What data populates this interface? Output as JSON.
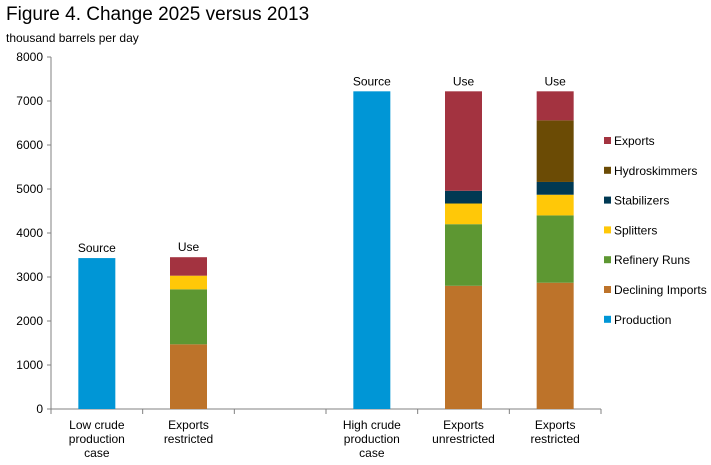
{
  "chart_data": {
    "type": "bar",
    "stacked": true,
    "title": "Figure 4. Change 2025 versus 2013",
    "subtitle": "thousand barrels per day",
    "ylim": [
      0,
      8000
    ],
    "yticks": [
      "0",
      "1000",
      "2000",
      "3000",
      "4000",
      "5000",
      "6000",
      "7000",
      "8000"
    ],
    "grid": false,
    "legend_position": "right",
    "categories": [
      {
        "label": [
          "Low crude",
          "production",
          "case"
        ],
        "top_label": "Source"
      },
      {
        "label": [
          "Exports",
          "restricted"
        ],
        "top_label": "Use"
      },
      {
        "label": [],
        "top_label": ""
      },
      {
        "label": [
          "High crude",
          "production",
          "case"
        ],
        "top_label": "Source"
      },
      {
        "label": [
          "Exports",
          "unrestricted"
        ],
        "top_label": "Use"
      },
      {
        "label": [
          "Exports",
          "restricted"
        ],
        "top_label": "Use"
      }
    ],
    "series": [
      {
        "name": "Production",
        "color": "#0096d6",
        "values": [
          3430,
          0,
          0,
          7220,
          0,
          0
        ]
      },
      {
        "name": "Declining Imports",
        "color": "#bd732a",
        "values": [
          0,
          1470,
          0,
          0,
          2800,
          2870
        ]
      },
      {
        "name": "Refinery Runs",
        "color": "#5d9732",
        "values": [
          0,
          1250,
          0,
          0,
          1400,
          1530
        ]
      },
      {
        "name": "Splitters",
        "color": "#ffc808",
        "values": [
          0,
          310,
          0,
          0,
          470,
          470
        ]
      },
      {
        "name": "Stabilizers",
        "color": "#003953",
        "values": [
          0,
          0,
          0,
          0,
          290,
          290
        ]
      },
      {
        "name": "Hydroskimmers",
        "color": "#6b4b05",
        "values": [
          0,
          0,
          0,
          0,
          0,
          1400
        ]
      },
      {
        "name": "Exports",
        "color": "#a33340",
        "values": [
          0,
          420,
          0,
          0,
          2260,
          660
        ]
      }
    ]
  }
}
